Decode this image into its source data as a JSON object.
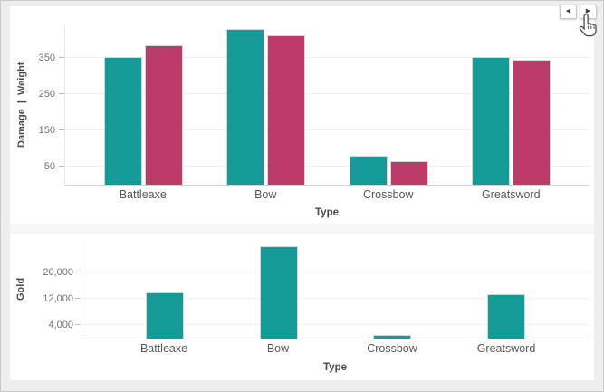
{
  "nav": {
    "prev_icon": "◀",
    "next_icon": "▶"
  },
  "palette": {
    "teal": "#159A98",
    "crimson": "#BB3A68",
    "card": "#FFFFFF",
    "background": "#EEEEEE"
  },
  "chart_data": [
    {
      "type": "bar",
      "title": "",
      "xlabel": "Type",
      "ylabel": "Damage | Weight",
      "categories": [
        "Battleaxe",
        "Bow",
        "Crossbow",
        "Greatsword"
      ],
      "series": [
        {
          "name": "Damage",
          "color": "#159A98",
          "values": [
            352,
            430,
            80,
            352
          ]
        },
        {
          "name": "Weight",
          "color": "#BB3A68",
          "values": [
            385,
            412,
            65,
            345
          ]
        }
      ],
      "ylim": [
        0,
        440
      ],
      "yticks": [
        {
          "value": 50,
          "label": "50"
        },
        {
          "value": 150,
          "label": "150"
        },
        {
          "value": 250,
          "label": "250"
        },
        {
          "value": 350,
          "label": "350"
        }
      ],
      "grid": true,
      "legend_position": "none"
    },
    {
      "type": "bar",
      "title": "",
      "xlabel": "Type",
      "ylabel": "Gold",
      "categories": [
        "Battleaxe",
        "Bow",
        "Crossbow",
        "Greatsword"
      ],
      "series": [
        {
          "name": "Gold",
          "color": "#159A98",
          "values": [
            14000,
            28000,
            1000,
            13500
          ]
        }
      ],
      "ylim": [
        0,
        30000
      ],
      "yticks": [
        {
          "value": 4000,
          "label": "4,000"
        },
        {
          "value": 12000,
          "label": "12,000"
        },
        {
          "value": 20000,
          "label": "20,000"
        }
      ],
      "grid": true,
      "legend_position": "none"
    }
  ]
}
